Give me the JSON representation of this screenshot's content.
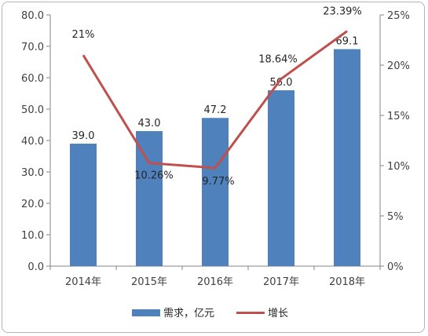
{
  "chart_data": {
    "type": "bar+line",
    "categories": [
      "2014年",
      "2015年",
      "2016年",
      "2017年",
      "2018年"
    ],
    "series": [
      {
        "name": "需求，亿元",
        "kind": "bar",
        "axis": "left",
        "values": [
          39.0,
          43.0,
          47.2,
          56.0,
          69.1
        ],
        "labels": [
          "39.0",
          "43.0",
          "47.2",
          "56.0",
          "69.1"
        ],
        "color": "#4f81bd"
      },
      {
        "name": "增长",
        "kind": "line",
        "axis": "right",
        "values": [
          21,
          10.26,
          9.77,
          18.64,
          23.39
        ],
        "labels": [
          "21%",
          "10.26%",
          "9.77%",
          "18.64%",
          "23.39%"
        ],
        "color": "#c0504d"
      }
    ],
    "y_left": {
      "ylim": [
        0,
        80
      ],
      "ticks": [
        "0.0",
        "10.0",
        "20.0",
        "30.0",
        "40.0",
        "50.0",
        "60.0",
        "70.0",
        "80.0"
      ]
    },
    "y_right": {
      "ylim": [
        0,
        25
      ],
      "ticks": [
        "0%",
        "5%",
        "10%",
        "15%",
        "20%",
        "25%"
      ]
    },
    "grid": false,
    "legend_position": "bottom"
  }
}
